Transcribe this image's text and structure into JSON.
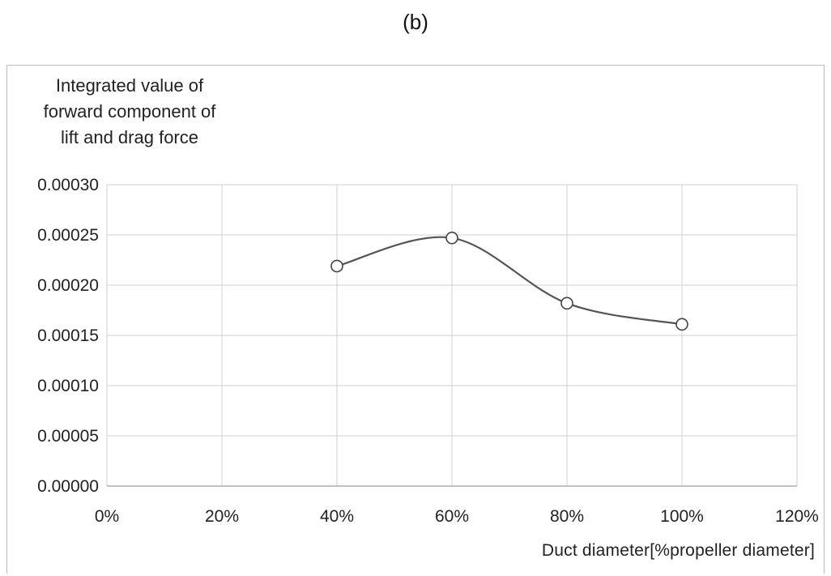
{
  "figure_label": "(b)",
  "chart_data": {
    "type": "line",
    "ylabel": "Integrated value of forward component of lift and drag force",
    "ylabel_lines": [
      "Integrated value of",
      "forward component of",
      "lift and drag force"
    ],
    "xlabel": "Duct diameter[%propeller  diameter]",
    "x_ticks": [
      "0%",
      "20%",
      "40%",
      "60%",
      "80%",
      "100%",
      "120%"
    ],
    "y_ticks": [
      "0.00000",
      "0.00005",
      "0.00010",
      "0.00015",
      "0.00020",
      "0.00025",
      "0.00030"
    ],
    "xlim": [
      0,
      120
    ],
    "ylim": [
      0,
      0.0003
    ],
    "grid": true,
    "smooth": true,
    "marker": "open-circle",
    "series": [
      {
        "x": [
          40,
          60,
          80,
          100
        ],
        "y": [
          0.000219,
          0.000247,
          0.000182,
          0.000161
        ],
        "color": "#555555"
      }
    ]
  }
}
